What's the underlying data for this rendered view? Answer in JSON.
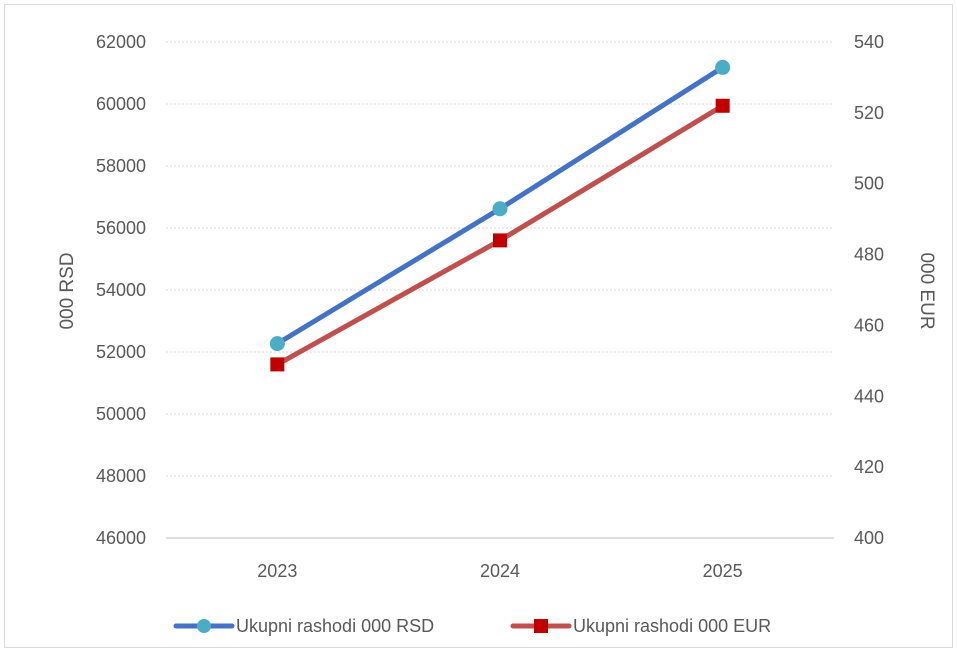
{
  "chart_data": {
    "type": "line",
    "categories": [
      "2023",
      "2024",
      "2025"
    ],
    "series": [
      {
        "name": "Ukupni rashodi 000 RSD",
        "axis": "left",
        "values": [
          52270,
          56620,
          61180
        ],
        "color": "#4472C4",
        "marker": "circle",
        "marker_color": "#4BACC6"
      },
      {
        "name": "Ukupni rashodi 000 EUR",
        "axis": "right",
        "values": [
          449,
          484,
          522
        ],
        "color": "#C0504D",
        "marker": "square",
        "marker_color": "#C00000"
      }
    ],
    "ylabel_left": "000 RSD",
    "ylabel_right": "000 EUR",
    "ylim_left": [
      46000,
      62000
    ],
    "yticks_left": [
      "46000",
      "48000",
      "50000",
      "52000",
      "54000",
      "56000",
      "58000",
      "60000",
      "62000"
    ],
    "ylim_right": [
      400,
      540
    ],
    "yticks_right": [
      "400",
      "420",
      "440",
      "460",
      "480",
      "500",
      "520",
      "540"
    ],
    "grid": true,
    "legend_position": "bottom"
  }
}
